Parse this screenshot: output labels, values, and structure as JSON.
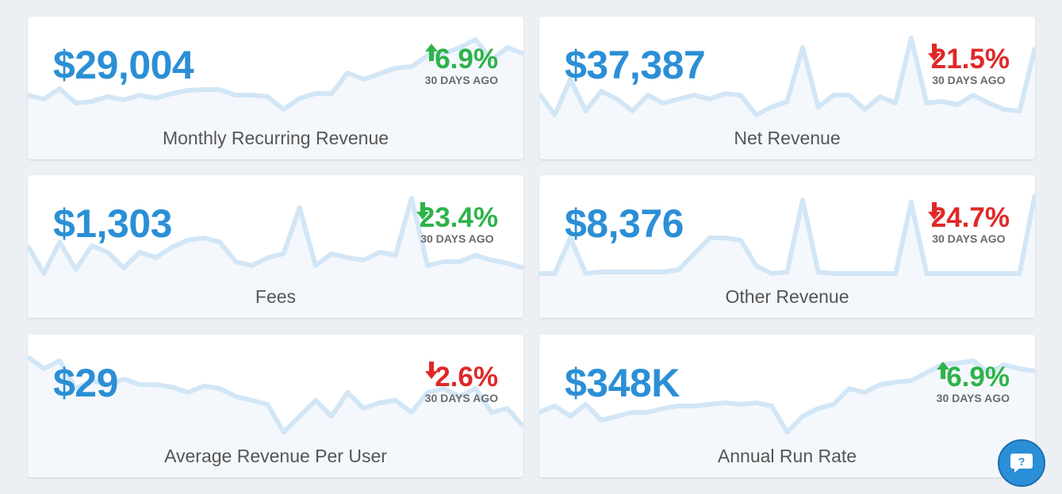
{
  "colors": {
    "value": "#2b8fd6",
    "up": "#2db34a",
    "down": "#e02828",
    "sparkline": "#d2e6f6",
    "sparkline_fill": "#f4f8fc"
  },
  "cards": [
    {
      "value": "$29,004",
      "change": "6.9%",
      "direction": "up",
      "color": "up",
      "period": "30 DAYS AGO",
      "label": "Monthly Recurring Revenue",
      "trend": [
        81,
        76,
        89,
        71,
        73,
        79,
        75,
        81,
        77,
        83,
        87,
        88,
        88,
        81,
        81,
        79,
        63,
        77,
        83,
        83,
        109,
        101,
        108,
        115,
        117,
        131,
        133,
        141,
        151,
        126,
        141,
        133
      ]
    },
    {
      "value": "$37,387",
      "change": "21.5%",
      "direction": "down",
      "color": "down",
      "period": "30 DAYS AGO",
      "label": "Net Revenue",
      "trend": [
        83,
        56,
        101,
        61,
        86,
        76,
        61,
        81,
        71,
        76,
        81,
        76,
        83,
        81,
        56,
        66,
        73,
        141,
        66,
        81,
        81,
        63,
        79,
        71,
        153,
        71,
        73,
        69,
        81,
        71,
        63,
        61,
        141
      ]
    },
    {
      "value": "$1,303",
      "change": "23.4%",
      "direction": "down",
      "color": "up",
      "period": "30 DAYS AGO",
      "label": "Fees",
      "trend": [
        91,
        56,
        96,
        61,
        91,
        83,
        63,
        83,
        76,
        89,
        98,
        101,
        96,
        71,
        66,
        76,
        81,
        139,
        66,
        81,
        76,
        73,
        83,
        79,
        151,
        66,
        71,
        71,
        79,
        73,
        69,
        63
      ]
    },
    {
      "value": "$8,376",
      "change": "24.7%",
      "direction": "down",
      "color": "down",
      "period": "30 DAYS AGO",
      "label": "Other Revenue",
      "trend": [
        56,
        56,
        101,
        56,
        58,
        58,
        58,
        58,
        58,
        61,
        81,
        101,
        101,
        98,
        66,
        56,
        58,
        149,
        58,
        56,
        56,
        56,
        56,
        56,
        146,
        56,
        56,
        56,
        56,
        56,
        56,
        56,
        156
      ]
    },
    {
      "value": "$29",
      "change": "2.6%",
      "direction": "down",
      "color": "down",
      "period": "30 DAYS AGO",
      "label": "Average Revenue Per User",
      "trend": [
        152,
        137,
        147,
        112,
        122,
        117,
        124,
        117,
        117,
        114,
        107,
        115,
        112,
        102,
        97,
        92,
        57,
        77,
        97,
        77,
        107,
        87,
        94,
        97,
        82,
        107,
        112,
        102,
        112,
        82,
        87,
        64
      ]
    },
    {
      "value": "$348K",
      "change": "6.9%",
      "direction": "up",
      "color": "up",
      "period": "30 DAYS AGO",
      "label": "Annual Run Rate",
      "trend": [
        82,
        90,
        77,
        92,
        72,
        77,
        82,
        82,
        87,
        90,
        90,
        92,
        94,
        92,
        94,
        90,
        57,
        77,
        87,
        92,
        112,
        107,
        117,
        120,
        122,
        132,
        142,
        144,
        147,
        132,
        142,
        137,
        134
      ]
    }
  ],
  "help": {
    "icon": "question-chat-icon"
  }
}
